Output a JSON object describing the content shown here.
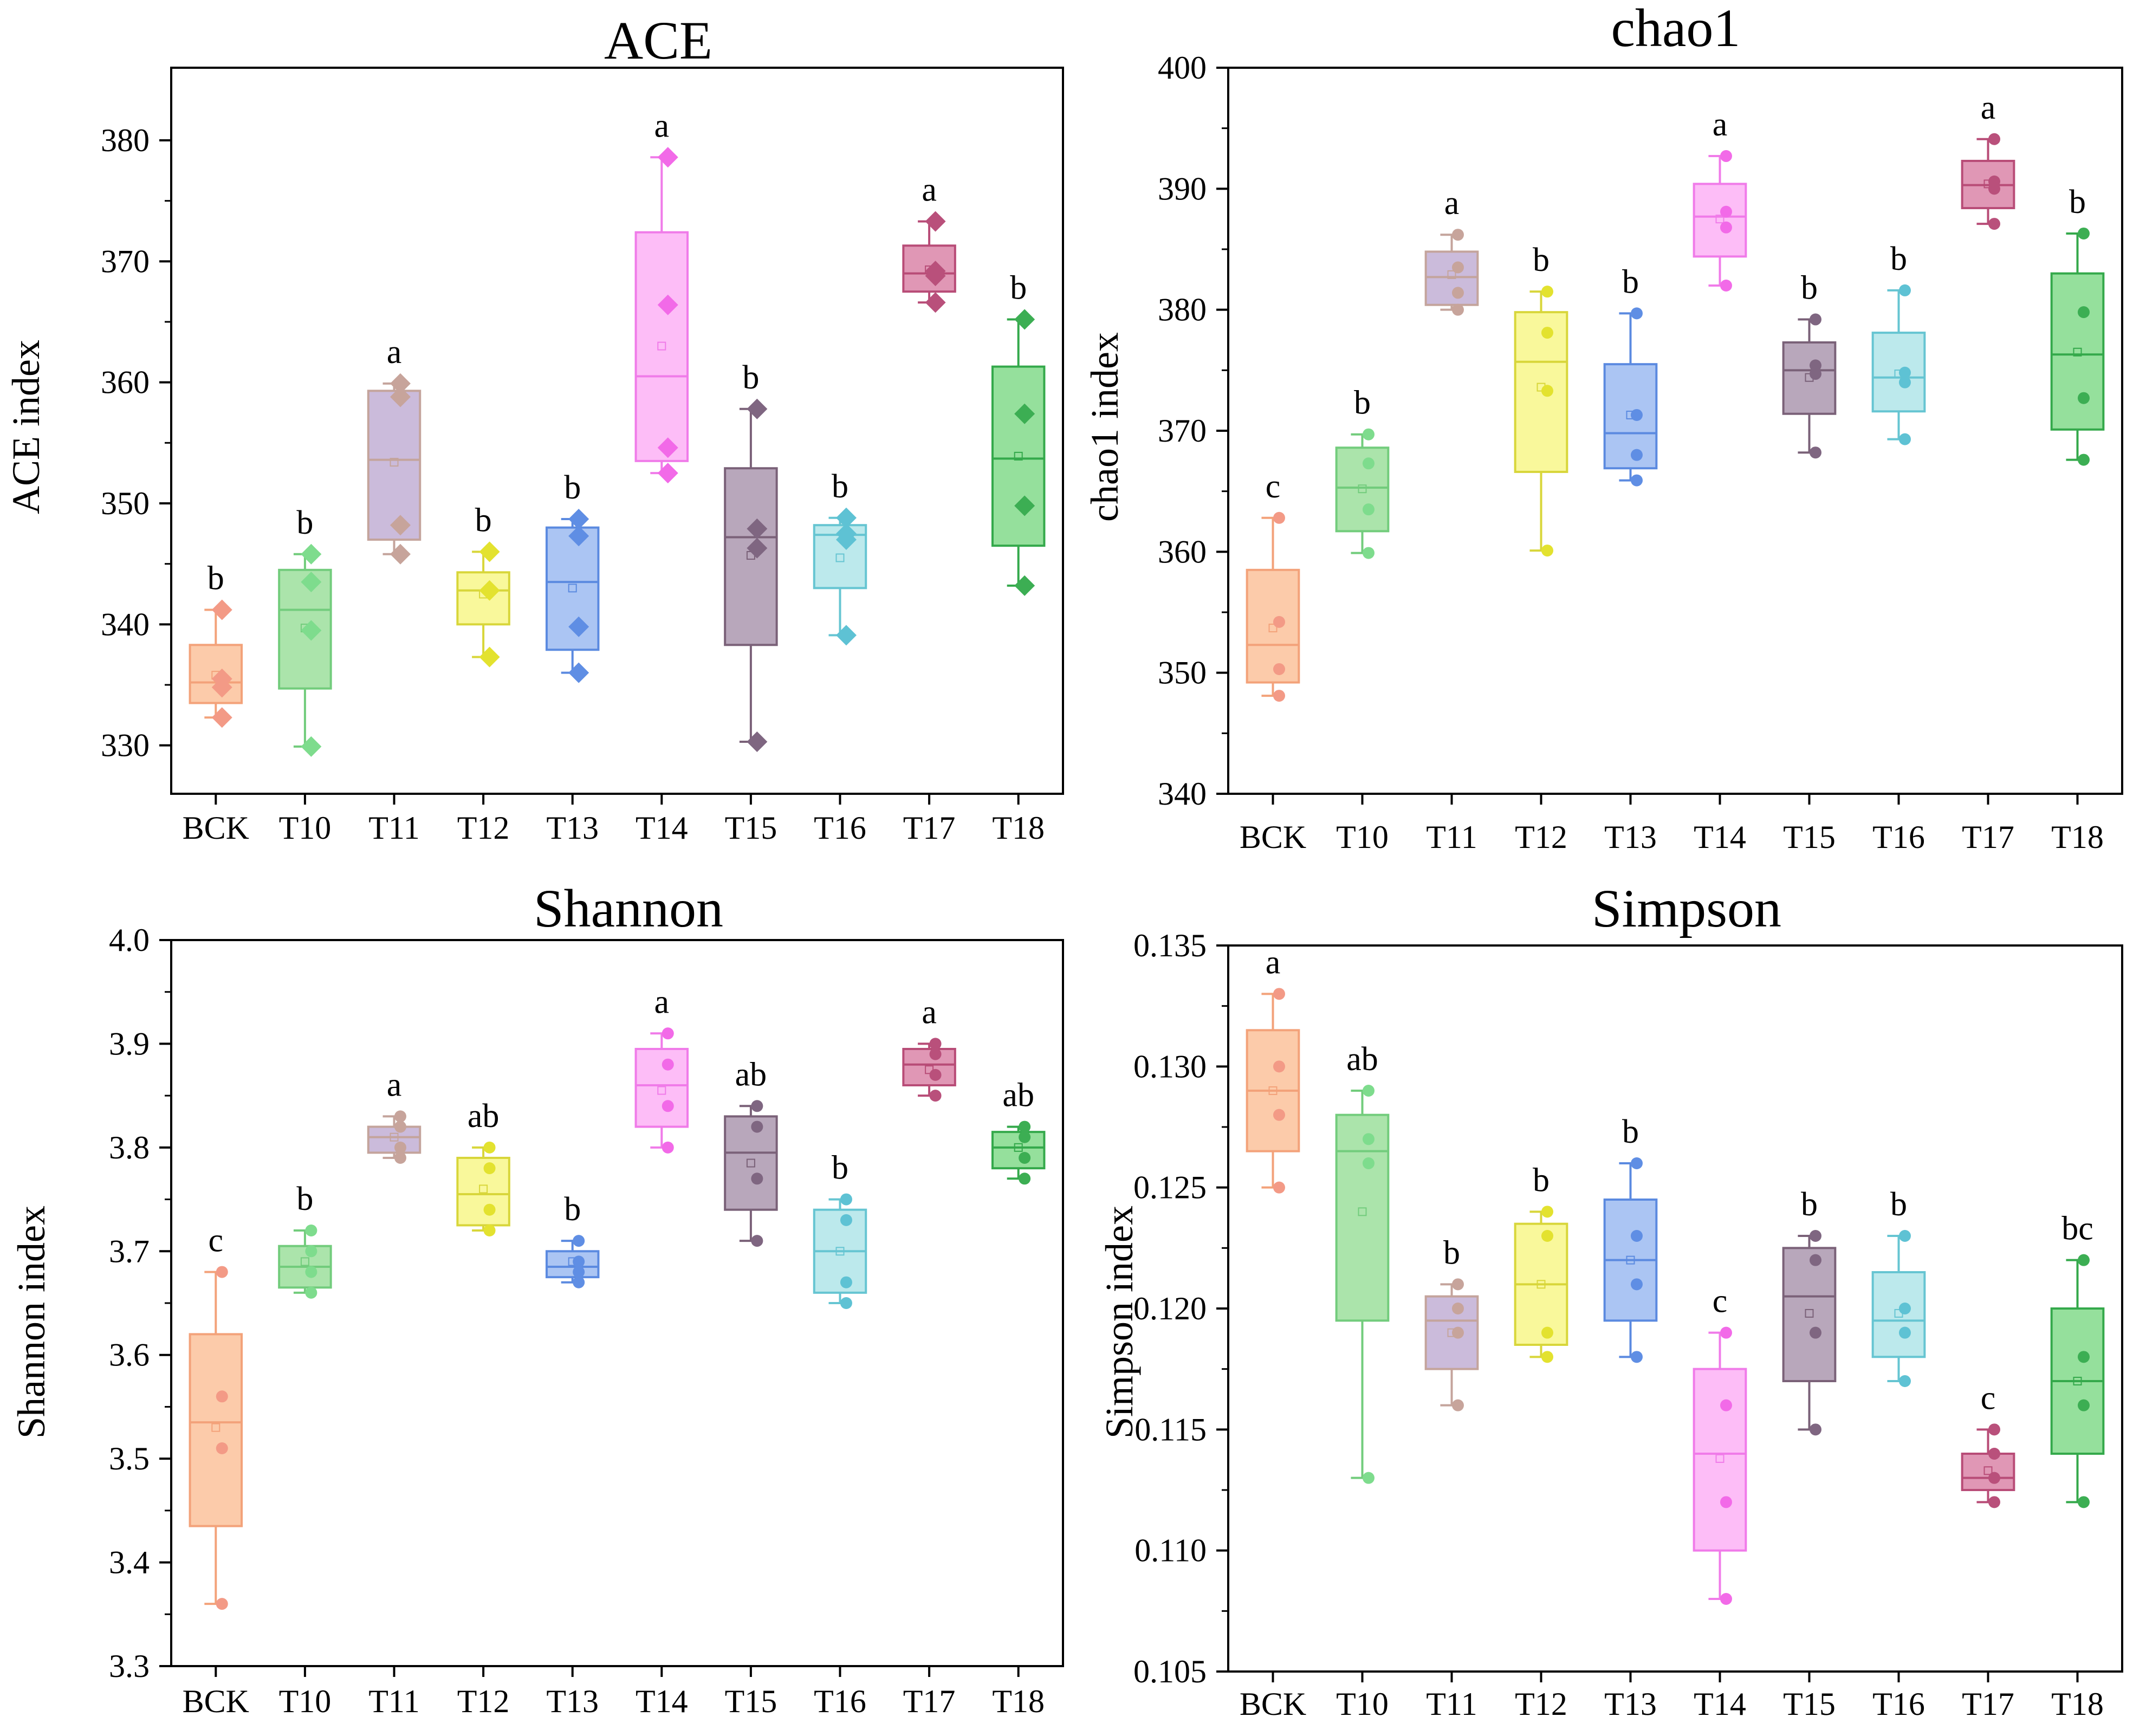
{
  "chart_data": [
    {
      "type": "box",
      "title": "ACE",
      "ylabel": "ACE index",
      "xlabel": "",
      "categories": [
        "BCK",
        "T10",
        "T11",
        "T12",
        "T13",
        "T14",
        "T15",
        "T16",
        "T17",
        "T18"
      ],
      "ylim": [
        326,
        386
      ],
      "yticks": [
        330,
        340,
        350,
        360,
        370,
        380
      ],
      "ytick_labels": [
        "330",
        "340",
        "350",
        "360",
        "370",
        "380"
      ],
      "point_marker": "diamond",
      "boxes": [
        {
          "min": 332.3,
          "q1": 333.5,
          "median": 335.2,
          "q3": 338.3,
          "max": 341.2,
          "mean": 335.8,
          "points": [
            332.3,
            335.5,
            334.8,
            341.2
          ],
          "letter": "b"
        },
        {
          "min": 329.9,
          "q1": 334.7,
          "median": 341.2,
          "q3": 344.5,
          "max": 345.8,
          "mean": 339.7,
          "points": [
            329.9,
            339.5,
            343.5,
            345.8
          ],
          "letter": "b"
        },
        {
          "min": 345.8,
          "q1": 347.0,
          "median": 353.6,
          "q3": 359.3,
          "max": 359.9,
          "mean": 353.4,
          "points": [
            345.8,
            348.2,
            358.8,
            359.9
          ],
          "letter": "a"
        },
        {
          "min": 337.3,
          "q1": 340.0,
          "median": 342.8,
          "q3": 344.3,
          "max": 346.0,
          "mean": 342.5,
          "points": [
            337.3,
            342.8,
            346.0
          ],
          "letter": "b"
        },
        {
          "min": 336.0,
          "q1": 337.9,
          "median": 343.5,
          "q3": 348.0,
          "max": 348.7,
          "mean": 343.0,
          "points": [
            336.0,
            339.8,
            347.3,
            348.7
          ],
          "letter": "b"
        },
        {
          "min": 352.5,
          "q1": 353.5,
          "median": 360.5,
          "q3": 372.4,
          "max": 378.6,
          "mean": 363.0,
          "points": [
            352.5,
            354.6,
            366.4,
            378.6
          ],
          "letter": "a"
        },
        {
          "min": 330.3,
          "q1": 338.3,
          "median": 347.2,
          "q3": 352.9,
          "max": 357.8,
          "mean": 345.7,
          "points": [
            330.3,
            346.3,
            347.9,
            357.8
          ],
          "letter": "b"
        },
        {
          "min": 339.1,
          "q1": 343.0,
          "median": 347.4,
          "q3": 348.2,
          "max": 348.8,
          "mean": 345.5,
          "points": [
            339.1,
            347.0,
            347.5,
            348.8
          ],
          "letter": "b"
        },
        {
          "min": 366.6,
          "q1": 367.5,
          "median": 369.0,
          "q3": 371.3,
          "max": 373.3,
          "mean": 369.3,
          "points": [
            366.6,
            368.8,
            369.2,
            373.3
          ],
          "letter": "a"
        },
        {
          "min": 343.2,
          "q1": 346.5,
          "median": 353.7,
          "q3": 361.3,
          "max": 365.2,
          "mean": 353.9,
          "points": [
            343.2,
            349.8,
            357.4,
            365.2
          ],
          "letter": "b"
        }
      ]
    },
    {
      "type": "box",
      "title": "chao1",
      "ylabel": "chao1 index",
      "xlabel": "",
      "categories": [
        "BCK",
        "T10",
        "T11",
        "T12",
        "T13",
        "T14",
        "T15",
        "T16",
        "T17",
        "T18"
      ],
      "ylim": [
        340,
        400
      ],
      "yticks": [
        340,
        350,
        360,
        370,
        380,
        390,
        400
      ],
      "ytick_labels": [
        "340",
        "350",
        "360",
        "370",
        "380",
        "390",
        "400"
      ],
      "point_marker": "circle",
      "boxes": [
        {
          "min": 348.1,
          "q1": 349.2,
          "median": 352.3,
          "q3": 358.5,
          "max": 362.8,
          "mean": 353.7,
          "points": [
            348.1,
            350.3,
            354.2,
            362.8
          ],
          "letter": "c"
        },
        {
          "min": 359.9,
          "q1": 361.7,
          "median": 365.3,
          "q3": 368.6,
          "max": 369.7,
          "mean": 365.2,
          "points": [
            359.9,
            363.5,
            367.3,
            369.7
          ],
          "letter": "b"
        },
        {
          "min": 380.0,
          "q1": 380.4,
          "median": 382.7,
          "q3": 384.8,
          "max": 386.2,
          "mean": 382.9,
          "points": [
            380.0,
            381.4,
            383.5,
            386.2
          ],
          "letter": "a"
        },
        {
          "min": 360.1,
          "q1": 366.6,
          "median": 375.7,
          "q3": 379.8,
          "max": 381.5,
          "mean": 373.6,
          "points": [
            360.1,
            373.3,
            378.1,
            381.5
          ],
          "letter": "b"
        },
        {
          "min": 365.9,
          "q1": 366.9,
          "median": 369.8,
          "q3": 375.5,
          "max": 379.7,
          "mean": 371.3,
          "points": [
            365.9,
            368.0,
            371.3,
            379.7
          ],
          "letter": "b"
        },
        {
          "min": 382.0,
          "q1": 384.4,
          "median": 387.7,
          "q3": 390.4,
          "max": 392.7,
          "mean": 387.5,
          "points": [
            382.0,
            386.8,
            388.1,
            392.7
          ],
          "letter": "a"
        },
        {
          "min": 368.2,
          "q1": 371.4,
          "median": 375.0,
          "q3": 377.3,
          "max": 379.2,
          "mean": 374.4,
          "points": [
            368.2,
            374.7,
            375.4,
            379.2
          ],
          "letter": "b"
        },
        {
          "min": 369.3,
          "q1": 371.6,
          "median": 374.4,
          "q3": 378.1,
          "max": 381.6,
          "mean": 374.7,
          "points": [
            369.3,
            374.0,
            374.8,
            381.6
          ],
          "letter": "b"
        },
        {
          "min": 387.1,
          "q1": 388.4,
          "median": 390.3,
          "q3": 392.3,
          "max": 394.1,
          "mean": 390.4,
          "points": [
            387.1,
            390.0,
            390.6,
            394.1
          ],
          "letter": "a"
        },
        {
          "min": 367.6,
          "q1": 370.1,
          "median": 376.3,
          "q3": 383.0,
          "max": 386.3,
          "mean": 376.5,
          "points": [
            367.6,
            372.7,
            379.8,
            386.3
          ],
          "letter": "b"
        }
      ]
    },
    {
      "type": "box",
      "title": "Shannon",
      "ylabel": "Shannon index",
      "xlabel": "",
      "categories": [
        "BCK",
        "T10",
        "T11",
        "T12",
        "T13",
        "T14",
        "T15",
        "T16",
        "T17",
        "T18"
      ],
      "ylim": [
        3.3,
        4.0
      ],
      "yticks": [
        3.3,
        3.4,
        3.5,
        3.6,
        3.7,
        3.8,
        3.9,
        4.0
      ],
      "ytick_labels": [
        "3.3",
        "3.4",
        "3.5",
        "3.6",
        "3.7",
        "3.8",
        "3.9",
        "4.0"
      ],
      "point_marker": "circle",
      "boxes": [
        {
          "min": 3.36,
          "q1": 3.435,
          "median": 3.535,
          "q3": 3.62,
          "max": 3.68,
          "mean": 3.53,
          "points": [
            3.36,
            3.51,
            3.56,
            3.68
          ],
          "letter": "c"
        },
        {
          "min": 3.66,
          "q1": 3.665,
          "median": 3.685,
          "q3": 3.705,
          "max": 3.72,
          "mean": 3.69,
          "points": [
            3.66,
            3.68,
            3.7,
            3.72
          ],
          "letter": "b"
        },
        {
          "min": 3.79,
          "q1": 3.795,
          "median": 3.81,
          "q3": 3.82,
          "max": 3.83,
          "mean": 3.81,
          "points": [
            3.79,
            3.8,
            3.82,
            3.83
          ],
          "letter": "a"
        },
        {
          "min": 3.72,
          "q1": 3.725,
          "median": 3.755,
          "q3": 3.79,
          "max": 3.8,
          "mean": 3.76,
          "points": [
            3.72,
            3.74,
            3.78,
            3.8
          ],
          "letter": "ab"
        },
        {
          "min": 3.67,
          "q1": 3.675,
          "median": 3.685,
          "q3": 3.7,
          "max": 3.71,
          "mean": 3.69,
          "points": [
            3.67,
            3.68,
            3.69,
            3.71
          ],
          "letter": "b"
        },
        {
          "min": 3.8,
          "q1": 3.82,
          "median": 3.86,
          "q3": 3.895,
          "max": 3.91,
          "mean": 3.855,
          "points": [
            3.8,
            3.84,
            3.88,
            3.91
          ],
          "letter": "a"
        },
        {
          "min": 3.71,
          "q1": 3.74,
          "median": 3.795,
          "q3": 3.83,
          "max": 3.84,
          "mean": 3.785,
          "points": [
            3.71,
            3.77,
            3.82,
            3.84
          ],
          "letter": "ab"
        },
        {
          "min": 3.65,
          "q1": 3.66,
          "median": 3.7,
          "q3": 3.74,
          "max": 3.75,
          "mean": 3.7,
          "points": [
            3.65,
            3.67,
            3.73,
            3.75
          ],
          "letter": "b"
        },
        {
          "min": 3.85,
          "q1": 3.86,
          "median": 3.88,
          "q3": 3.895,
          "max": 3.9,
          "mean": 3.875,
          "points": [
            3.85,
            3.87,
            3.89,
            3.9
          ],
          "letter": "a"
        },
        {
          "min": 3.77,
          "q1": 3.78,
          "median": 3.8,
          "q3": 3.815,
          "max": 3.82,
          "mean": 3.8,
          "points": [
            3.77,
            3.79,
            3.81,
            3.82
          ],
          "letter": "ab"
        }
      ]
    },
    {
      "type": "box",
      "title": "Simpson",
      "ylabel": "Simpson index",
      "xlabel": "",
      "categories": [
        "BCK",
        "T10",
        "T11",
        "T12",
        "T13",
        "T14",
        "T15",
        "T16",
        "T17",
        "T18"
      ],
      "ylim": [
        0.105,
        0.135
      ],
      "yticks": [
        0.105,
        0.11,
        0.115,
        0.12,
        0.125,
        0.13,
        0.135
      ],
      "ytick_labels": [
        "0.105",
        "0.110",
        "0.115",
        "0.120",
        "0.125",
        "0.130",
        "0.135"
      ],
      "point_marker": "circle",
      "boxes": [
        {
          "min": 0.125,
          "q1": 0.1265,
          "median": 0.129,
          "q3": 0.1315,
          "max": 0.133,
          "mean": 0.129,
          "points": [
            0.125,
            0.128,
            0.13,
            0.133
          ],
          "letter": "a"
        },
        {
          "min": 0.113,
          "q1": 0.1195,
          "median": 0.1265,
          "q3": 0.128,
          "max": 0.129,
          "mean": 0.124,
          "points": [
            0.113,
            0.126,
            0.127,
            0.129
          ],
          "letter": "ab"
        },
        {
          "min": 0.116,
          "q1": 0.1175,
          "median": 0.1195,
          "q3": 0.1205,
          "max": 0.121,
          "mean": 0.119,
          "points": [
            0.116,
            0.119,
            0.12,
            0.121
          ],
          "letter": "b"
        },
        {
          "min": 0.118,
          "q1": 0.1185,
          "median": 0.121,
          "q3": 0.1235,
          "max": 0.124,
          "mean": 0.121,
          "points": [
            0.118,
            0.119,
            0.123,
            0.124
          ],
          "letter": "b"
        },
        {
          "min": 0.118,
          "q1": 0.1195,
          "median": 0.122,
          "q3": 0.1245,
          "max": 0.126,
          "mean": 0.122,
          "points": [
            0.118,
            0.121,
            0.123,
            0.126
          ],
          "letter": "b"
        },
        {
          "min": 0.108,
          "q1": 0.11,
          "median": 0.114,
          "q3": 0.1175,
          "max": 0.119,
          "mean": 0.1138,
          "points": [
            0.108,
            0.112,
            0.116,
            0.119
          ],
          "letter": "c"
        },
        {
          "min": 0.115,
          "q1": 0.117,
          "median": 0.1205,
          "q3": 0.1225,
          "max": 0.123,
          "mean": 0.1198,
          "points": [
            0.115,
            0.119,
            0.122,
            0.123
          ],
          "letter": "b"
        },
        {
          "min": 0.117,
          "q1": 0.118,
          "median": 0.1195,
          "q3": 0.1215,
          "max": 0.123,
          "mean": 0.1198,
          "points": [
            0.117,
            0.119,
            0.12,
            0.123
          ],
          "letter": "b"
        },
        {
          "min": 0.112,
          "q1": 0.1125,
          "median": 0.113,
          "q3": 0.114,
          "max": 0.115,
          "mean": 0.1133,
          "points": [
            0.112,
            0.113,
            0.114,
            0.115
          ],
          "letter": "c"
        },
        {
          "min": 0.112,
          "q1": 0.114,
          "median": 0.117,
          "q3": 0.12,
          "max": 0.122,
          "mean": 0.117,
          "points": [
            0.112,
            0.116,
            0.118,
            0.122
          ],
          "letter": "bc"
        }
      ]
    }
  ],
  "colors": {
    "groups": [
      {
        "fill": "#fbb98d",
        "stroke": "#f3a27a",
        "point": "#f39a86"
      },
      {
        "fill": "#8fdb8f",
        "stroke": "#72cc7c",
        "point": "#7edc8d"
      },
      {
        "fill": "#b9a4cf",
        "stroke": "#c4a49c",
        "point": "#c7a49b"
      },
      {
        "fill": "#f7f57a",
        "stroke": "#d8d63a",
        "point": "#e3e22f"
      },
      {
        "fill": "#8fb2ef",
        "stroke": "#5b8ae0",
        "point": "#5f8ee4"
      },
      {
        "fill": "#fca7f4",
        "stroke": "#f07be9",
        "point": "#f26ae8"
      },
      {
        "fill": "#a08aa4",
        "stroke": "#7a6178",
        "point": "#7f6681"
      },
      {
        "fill": "#a6e1e6",
        "stroke": "#66c5d2",
        "point": "#5ec2d4"
      },
      {
        "fill": "#d5749c",
        "stroke": "#b84c77",
        "point": "#b9507b"
      },
      {
        "fill": "#72d67b",
        "stroke": "#34a94b",
        "point": "#3cae53"
      }
    ],
    "axis": "#000000"
  }
}
